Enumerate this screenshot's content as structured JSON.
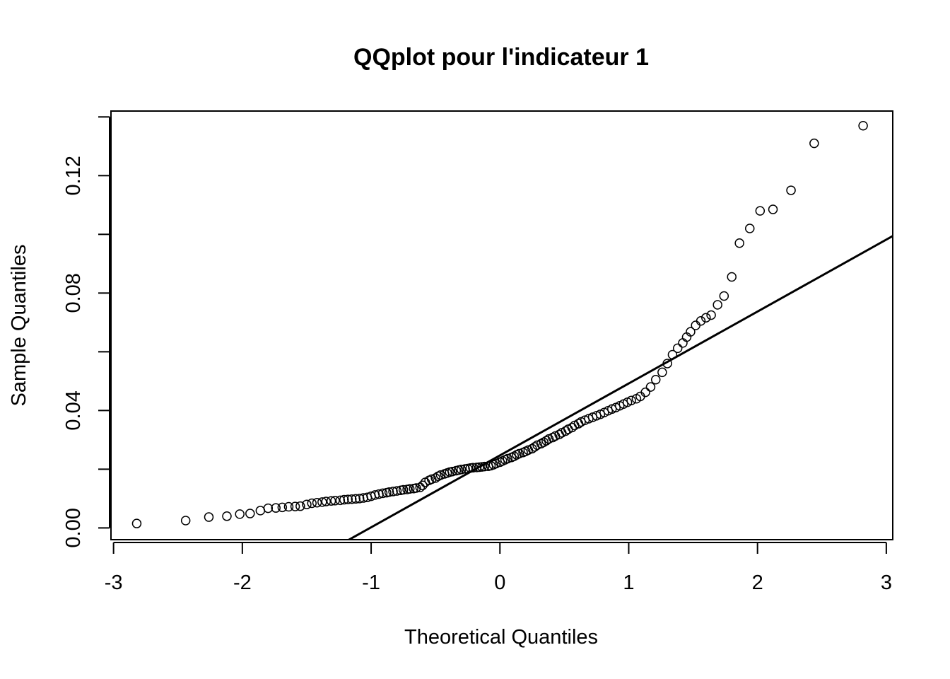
{
  "chart_data": {
    "type": "scatter",
    "title": "QQplot pour l'indicateur 1",
    "xlabel": "Theoretical Quantiles",
    "ylabel": "Sample Quantiles",
    "xlim": [
      -3.02,
      3.05
    ],
    "ylim": [
      -0.004,
      0.142
    ],
    "x_ticks": [
      -3,
      -2,
      -1,
      0,
      1,
      2,
      3
    ],
    "x_tick_labels": [
      "-3",
      "-2",
      "-1",
      "0",
      "1",
      "2",
      "3"
    ],
    "y_ticks": [
      0.0,
      0.02,
      0.04,
      0.06,
      0.08,
      0.1,
      0.12,
      0.14
    ],
    "y_tick_labels": [
      "0.00",
      "",
      "0.04",
      "",
      "0.08",
      "",
      "0.12",
      ""
    ],
    "grid": false,
    "colors": {
      "points": "#000000",
      "line": "#000000",
      "frame": "#000000"
    },
    "reference_line": {
      "slope": 0.0245,
      "intercept": 0.0247
    },
    "points": [
      [
        -2.82,
        0.0015
      ],
      [
        -2.44,
        0.0025
      ],
      [
        -2.26,
        0.0037
      ],
      [
        -2.12,
        0.004
      ],
      [
        -2.02,
        0.0047
      ],
      [
        -1.94,
        0.0049
      ],
      [
        -1.86,
        0.0059
      ],
      [
        -1.8,
        0.0067
      ],
      [
        -1.74,
        0.0068
      ],
      [
        -1.69,
        0.007
      ],
      [
        -1.64,
        0.0072
      ],
      [
        -1.59,
        0.0073
      ],
      [
        -1.55,
        0.0074
      ],
      [
        -1.5,
        0.008
      ],
      [
        -1.46,
        0.0084
      ],
      [
        -1.42,
        0.0086
      ],
      [
        -1.38,
        0.0088
      ],
      [
        -1.35,
        0.009
      ],
      [
        -1.31,
        0.0092
      ],
      [
        -1.28,
        0.0093
      ],
      [
        -1.24,
        0.0094
      ],
      [
        -1.21,
        0.0096
      ],
      [
        -1.18,
        0.0097
      ],
      [
        -1.15,
        0.0098
      ],
      [
        -1.12,
        0.0099
      ],
      [
        -1.09,
        0.01
      ],
      [
        -1.06,
        0.0102
      ],
      [
        -1.03,
        0.0104
      ],
      [
        -1.0,
        0.0108
      ],
      [
        -0.97,
        0.0112
      ],
      [
        -0.94,
        0.0115
      ],
      [
        -0.91,
        0.0118
      ],
      [
        -0.88,
        0.012
      ],
      [
        -0.86,
        0.0122
      ],
      [
        -0.83,
        0.0124
      ],
      [
        -0.8,
        0.0126
      ],
      [
        -0.77,
        0.0128
      ],
      [
        -0.75,
        0.013
      ],
      [
        -0.72,
        0.0131
      ],
      [
        -0.7,
        0.0133
      ],
      [
        -0.67,
        0.0134
      ],
      [
        -0.65,
        0.0136
      ],
      [
        -0.62,
        0.0138
      ],
      [
        -0.6,
        0.0145
      ],
      [
        -0.58,
        0.0155
      ],
      [
        -0.55,
        0.0162
      ],
      [
        -0.53,
        0.0166
      ],
      [
        -0.5,
        0.017
      ],
      [
        -0.48,
        0.0176
      ],
      [
        -0.46,
        0.018
      ],
      [
        -0.43,
        0.0184
      ],
      [
        -0.41,
        0.0187
      ],
      [
        -0.39,
        0.019
      ],
      [
        -0.37,
        0.0192
      ],
      [
        -0.34,
        0.0195
      ],
      [
        -0.32,
        0.0197
      ],
      [
        -0.3,
        0.0199
      ],
      [
        -0.27,
        0.0201
      ],
      [
        -0.25,
        0.0202
      ],
      [
        -0.23,
        0.0204
      ],
      [
        -0.21,
        0.0205
      ],
      [
        -0.18,
        0.0206
      ],
      [
        -0.16,
        0.0207
      ],
      [
        -0.14,
        0.0208
      ],
      [
        -0.12,
        0.0209
      ],
      [
        -0.09,
        0.021
      ],
      [
        -0.07,
        0.0212
      ],
      [
        -0.05,
        0.0215
      ],
      [
        -0.03,
        0.0219
      ],
      [
        0.0,
        0.0224
      ],
      [
        0.02,
        0.0228
      ],
      [
        0.04,
        0.0232
      ],
      [
        0.06,
        0.0236
      ],
      [
        0.09,
        0.024
      ],
      [
        0.11,
        0.0244
      ],
      [
        0.13,
        0.0249
      ],
      [
        0.15,
        0.0253
      ],
      [
        0.18,
        0.0257
      ],
      [
        0.2,
        0.0261
      ],
      [
        0.22,
        0.0265
      ],
      [
        0.25,
        0.027
      ],
      [
        0.27,
        0.0276
      ],
      [
        0.29,
        0.0282
      ],
      [
        0.32,
        0.0287
      ],
      [
        0.34,
        0.0292
      ],
      [
        0.36,
        0.0297
      ],
      [
        0.38,
        0.0303
      ],
      [
        0.41,
        0.0308
      ],
      [
        0.43,
        0.0313
      ],
      [
        0.46,
        0.0318
      ],
      [
        0.48,
        0.0324
      ],
      [
        0.51,
        0.033
      ],
      [
        0.53,
        0.0336
      ],
      [
        0.56,
        0.0342
      ],
      [
        0.58,
        0.0349
      ],
      [
        0.61,
        0.0355
      ],
      [
        0.63,
        0.0361
      ],
      [
        0.66,
        0.0367
      ],
      [
        0.69,
        0.0372
      ],
      [
        0.72,
        0.0377
      ],
      [
        0.75,
        0.0382
      ],
      [
        0.78,
        0.0387
      ],
      [
        0.81,
        0.0393
      ],
      [
        0.84,
        0.0399
      ],
      [
        0.87,
        0.0405
      ],
      [
        0.9,
        0.041
      ],
      [
        0.93,
        0.0416
      ],
      [
        0.96,
        0.0422
      ],
      [
        0.99,
        0.0428
      ],
      [
        1.02,
        0.0434
      ],
      [
        1.06,
        0.044
      ],
      [
        1.09,
        0.0448
      ],
      [
        1.13,
        0.0462
      ],
      [
        1.17,
        0.048
      ],
      [
        1.21,
        0.0505
      ],
      [
        1.26,
        0.053
      ],
      [
        1.3,
        0.056
      ],
      [
        1.34,
        0.059
      ],
      [
        1.38,
        0.0612
      ],
      [
        1.42,
        0.063
      ],
      [
        1.45,
        0.065
      ],
      [
        1.48,
        0.0668
      ],
      [
        1.52,
        0.069
      ],
      [
        1.56,
        0.0705
      ],
      [
        1.6,
        0.0716
      ],
      [
        1.64,
        0.0725
      ],
      [
        1.69,
        0.076
      ],
      [
        1.74,
        0.079
      ],
      [
        1.8,
        0.0855
      ],
      [
        1.86,
        0.097
      ],
      [
        1.94,
        0.102
      ],
      [
        2.02,
        0.108
      ],
      [
        2.12,
        0.1085
      ],
      [
        2.26,
        0.115
      ],
      [
        2.44,
        0.131
      ],
      [
        2.82,
        0.137
      ]
    ]
  }
}
